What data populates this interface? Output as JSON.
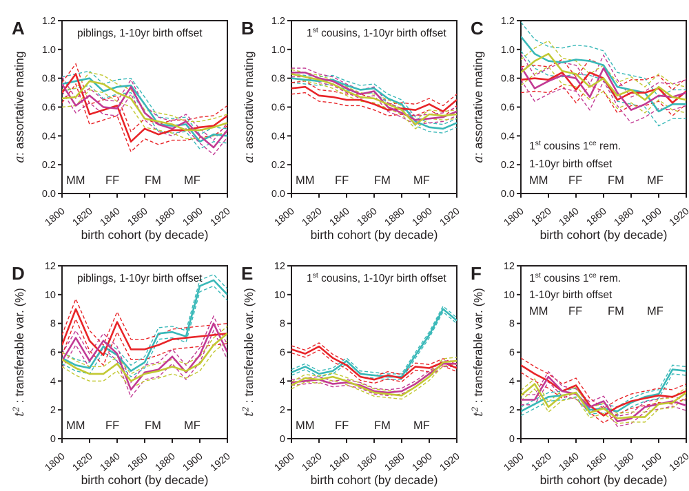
{
  "figure": {
    "background": "#ffffff",
    "axis_color": "#231f20",
    "xlabel": "birth cohort (by decade)",
    "legend_labels": [
      "MM",
      "FF",
      "FM",
      "MF"
    ],
    "series_colors": {
      "MM": "#38b8b8",
      "FF": "#e82428",
      "FM": "#c23a94",
      "MF": "#c2c832"
    }
  },
  "chart_data": [
    {
      "id": "A",
      "type": "line",
      "ylabel_segments": [
        {
          "t": "a",
          "italic": true
        },
        {
          "t": ": assortative mating"
        }
      ],
      "ylim": [
        0,
        1.2
      ],
      "yticks": [
        0,
        0.2,
        0.4,
        0.6,
        0.8,
        1.0,
        1.2
      ],
      "ytick_decimals": 1,
      "xlabel": "birth cohort (by decade)",
      "xticks": [
        1800,
        1820,
        1840,
        1860,
        1880,
        1900,
        1920
      ],
      "x": [
        1800,
        1810,
        1820,
        1830,
        1840,
        1850,
        1860,
        1870,
        1880,
        1890,
        1900,
        1910,
        1920
      ],
      "annotation": {
        "placement": "top",
        "lines": [
          [
            {
              "t": "piblings, 1-10yr birth offset"
            }
          ]
        ]
      },
      "legend_placement": "bottom",
      "series": [
        {
          "name": "MM",
          "values": [
            0.76,
            0.78,
            0.8,
            0.71,
            0.74,
            0.75,
            0.62,
            0.48,
            0.47,
            0.48,
            0.36,
            0.41,
            0.4
          ],
          "ci": 0.05
        },
        {
          "name": "FF",
          "values": [
            0.7,
            0.83,
            0.55,
            0.58,
            0.61,
            0.36,
            0.45,
            0.41,
            0.44,
            0.44,
            0.46,
            0.47,
            0.54
          ],
          "ci": 0.07
        },
        {
          "name": "FM",
          "values": [
            0.76,
            0.61,
            0.68,
            0.6,
            0.59,
            0.74,
            0.56,
            0.48,
            0.45,
            0.5,
            0.4,
            0.32,
            0.44
          ],
          "ci": 0.05
        },
        {
          "name": "MF",
          "values": [
            0.66,
            0.67,
            0.78,
            0.76,
            0.7,
            0.66,
            0.52,
            0.5,
            0.48,
            0.44,
            0.44,
            0.46,
            0.49
          ],
          "ci": 0.06
        }
      ]
    },
    {
      "id": "B",
      "type": "line",
      "ylabel_segments": [
        {
          "t": "a",
          "italic": true
        },
        {
          "t": ": assortative mating"
        }
      ],
      "ylim": [
        0,
        1.2
      ],
      "yticks": [
        0,
        0.2,
        0.4,
        0.6,
        0.8,
        1.0,
        1.2
      ],
      "ytick_decimals": 1,
      "xlabel": "birth cohort (by decade)",
      "xticks": [
        1800,
        1820,
        1840,
        1860,
        1880,
        1900,
        1920
      ],
      "x": [
        1800,
        1810,
        1820,
        1830,
        1840,
        1850,
        1860,
        1870,
        1880,
        1890,
        1900,
        1910,
        1920
      ],
      "annotation": {
        "placement": "top",
        "lines": [
          [
            {
              "t": "1"
            },
            {
              "t": "st",
              "sup": true
            },
            {
              "t": " cousins, 1-10yr birth offset"
            }
          ]
        ]
      },
      "legend_placement": "bottom",
      "series": [
        {
          "name": "MM",
          "values": [
            0.8,
            0.79,
            0.78,
            0.79,
            0.75,
            0.72,
            0.73,
            0.66,
            0.62,
            0.5,
            0.46,
            0.45,
            0.49
          ],
          "ci": 0.03
        },
        {
          "name": "FF",
          "values": [
            0.73,
            0.74,
            0.68,
            0.67,
            0.65,
            0.65,
            0.62,
            0.58,
            0.59,
            0.58,
            0.62,
            0.57,
            0.65
          ],
          "ci": 0.04
        },
        {
          "name": "FM",
          "values": [
            0.84,
            0.84,
            0.8,
            0.78,
            0.73,
            0.69,
            0.71,
            0.6,
            0.56,
            0.51,
            0.52,
            0.53,
            0.57
          ],
          "ci": 0.03
        },
        {
          "name": "MF",
          "values": [
            0.83,
            0.81,
            0.79,
            0.76,
            0.71,
            0.67,
            0.66,
            0.62,
            0.58,
            0.48,
            0.55,
            0.54,
            0.55
          ],
          "ci": 0.03
        }
      ]
    },
    {
      "id": "C",
      "type": "line",
      "ylabel_segments": [
        {
          "t": "a",
          "italic": true
        },
        {
          "t": ": assortative mating"
        }
      ],
      "ylim": [
        0,
        1.2
      ],
      "yticks": [
        0,
        0.2,
        0.4,
        0.6,
        0.8,
        1.0,
        1.2
      ],
      "ytick_decimals": 1,
      "xlabel": "birth cohort (by decade)",
      "xticks": [
        1800,
        1820,
        1840,
        1860,
        1880,
        1900,
        1920
      ],
      "x": [
        1800,
        1810,
        1820,
        1830,
        1840,
        1850,
        1860,
        1870,
        1880,
        1890,
        1900,
        1910,
        1920
      ],
      "annotation": {
        "placement": "bottom",
        "lines": [
          [
            {
              "t": "1"
            },
            {
              "t": "st",
              "sup": true
            },
            {
              "t": " cousins 1"
            },
            {
              "t": "ce",
              "sup": true
            },
            {
              "t": " rem."
            }
          ],
          [
            {
              "t": "1-10yr birth offset"
            }
          ]
        ]
      },
      "legend_placement": "bottom",
      "series": [
        {
          "name": "MM",
          "values": [
            1.09,
            0.97,
            0.92,
            0.91,
            0.93,
            0.92,
            0.89,
            0.74,
            0.72,
            0.7,
            0.57,
            0.62,
            0.62
          ],
          "ci": 0.1
        },
        {
          "name": "FF",
          "values": [
            0.79,
            0.8,
            0.79,
            0.84,
            0.72,
            0.84,
            0.8,
            0.65,
            0.7,
            0.7,
            0.73,
            0.63,
            0.71
          ],
          "ci": 0.09
        },
        {
          "name": "FM",
          "values": [
            0.88,
            0.73,
            0.78,
            0.82,
            0.8,
            0.67,
            0.87,
            0.7,
            0.58,
            0.62,
            0.68,
            0.67,
            0.7
          ],
          "ci": 0.09
        },
        {
          "name": "MF",
          "values": [
            0.84,
            0.92,
            0.97,
            0.85,
            0.83,
            0.74,
            0.8,
            0.68,
            0.72,
            0.65,
            0.74,
            0.67,
            0.65
          ],
          "ci": 0.09
        }
      ]
    },
    {
      "id": "D",
      "type": "line",
      "ylabel_segments": [
        {
          "t": "t",
          "italic": true
        },
        {
          "t": "2",
          "sup": true,
          "italic": true
        },
        {
          "t": " : transferable var. (%)"
        }
      ],
      "ylim": [
        0,
        12
      ],
      "yticks": [
        0,
        2,
        4,
        6,
        8,
        10,
        12
      ],
      "ytick_decimals": 0,
      "xlabel": "birth cohort (by decade)",
      "xticks": [
        1800,
        1820,
        1840,
        1860,
        1880,
        1900,
        1920
      ],
      "x": [
        1800,
        1810,
        1820,
        1830,
        1840,
        1850,
        1860,
        1870,
        1880,
        1890,
        1900,
        1910,
        1920
      ],
      "annotation": {
        "placement": "top",
        "lines": [
          [
            {
              "t": "piblings, 1-10yr birth offset"
            }
          ]
        ]
      },
      "legend_placement": "bottom",
      "series": [
        {
          "name": "MM",
          "values": [
            5.6,
            5.1,
            4.9,
            6.4,
            5.8,
            4.7,
            5.3,
            7.3,
            7.4,
            7.1,
            10.6,
            11.0,
            10.0
          ],
          "ci": 0.4
        },
        {
          "name": "FF",
          "values": [
            6.5,
            9.0,
            6.8,
            5.8,
            8.1,
            6.2,
            6.2,
            6.5,
            6.9,
            7.0,
            7.1,
            7.2,
            7.3
          ],
          "ci": 0.7
        },
        {
          "name": "FM",
          "values": [
            5.4,
            7.0,
            5.4,
            6.8,
            5.9,
            3.4,
            4.6,
            4.8,
            5.7,
            4.6,
            5.8,
            8.0,
            6.0
          ],
          "ci": 0.5
        },
        {
          "name": "MF",
          "values": [
            5.5,
            4.9,
            4.5,
            4.5,
            5.2,
            4.0,
            4.5,
            4.7,
            5.0,
            4.7,
            5.2,
            6.5,
            7.3
          ],
          "ci": 0.5
        }
      ]
    },
    {
      "id": "E",
      "type": "line",
      "ylabel_segments": [
        {
          "t": "t",
          "italic": true
        },
        {
          "t": "2",
          "sup": true,
          "italic": true
        },
        {
          "t": " : transferable var. (%)"
        }
      ],
      "ylim": [
        0,
        12
      ],
      "yticks": [
        0,
        2,
        4,
        6,
        8,
        10,
        12
      ],
      "ytick_decimals": 0,
      "xlabel": "birth cohort (by decade)",
      "xticks": [
        1800,
        1820,
        1840,
        1860,
        1880,
        1900,
        1920
      ],
      "x": [
        1800,
        1810,
        1820,
        1830,
        1840,
        1850,
        1860,
        1870,
        1880,
        1890,
        1900,
        1910,
        1920
      ],
      "annotation": {
        "placement": "top",
        "lines": [
          [
            {
              "t": "1"
            },
            {
              "t": "st",
              "sup": true
            },
            {
              "t": " cousins, 1-10yr birth offset"
            }
          ]
        ]
      },
      "legend_placement": "bottom",
      "series": [
        {
          "name": "MM",
          "values": [
            4.6,
            5.0,
            4.5,
            4.7,
            5.4,
            4.5,
            4.4,
            4.3,
            4.3,
            5.8,
            7.2,
            9.0,
            8.2
          ],
          "ci": 0.2
        },
        {
          "name": "FF",
          "values": [
            6.2,
            5.9,
            6.4,
            5.6,
            5.1,
            4.3,
            4.1,
            4.4,
            4.2,
            5.0,
            4.9,
            5.3,
            4.9
          ],
          "ci": 0.25
        },
        {
          "name": "FM",
          "values": [
            3.9,
            4.0,
            4.1,
            3.8,
            3.9,
            3.7,
            3.3,
            3.2,
            3.3,
            3.8,
            4.5,
            5.2,
            5.2
          ],
          "ci": 0.2
        },
        {
          "name": "MF",
          "values": [
            3.7,
            4.2,
            4.1,
            4.3,
            4.0,
            3.6,
            3.2,
            3.1,
            3.0,
            3.6,
            4.3,
            5.3,
            5.4
          ],
          "ci": 0.25
        }
      ]
    },
    {
      "id": "F",
      "type": "line",
      "ylabel_segments": [
        {
          "t": "t",
          "italic": true
        },
        {
          "t": "2",
          "sup": true,
          "italic": true
        },
        {
          "t": " : transferable var. (%)"
        }
      ],
      "ylim": [
        0,
        12
      ],
      "yticks": [
        0,
        2,
        4,
        6,
        8,
        10,
        12
      ],
      "ytick_decimals": 0,
      "xlabel": "birth cohort (by decade)",
      "xticks": [
        1800,
        1820,
        1840,
        1860,
        1880,
        1900,
        1920
      ],
      "x": [
        1800,
        1810,
        1820,
        1830,
        1840,
        1850,
        1860,
        1870,
        1880,
        1890,
        1900,
        1910,
        1920
      ],
      "annotation": {
        "placement": "top",
        "lines": [
          [
            {
              "t": "1"
            },
            {
              "t": "st",
              "sup": true
            },
            {
              "t": " cousins 1"
            },
            {
              "t": "ce",
              "sup": true
            },
            {
              "t": " rem."
            }
          ],
          [
            {
              "t": "1-10yr birth offset"
            }
          ]
        ]
      },
      "legend_placement": "in_annotation",
      "series": [
        {
          "name": "MM",
          "values": [
            1.9,
            2.4,
            2.9,
            3.0,
            3.2,
            2.0,
            2.1,
            1.9,
            2.5,
            2.9,
            3.1,
            4.8,
            4.7
          ],
          "ci": 0.3
        },
        {
          "name": "FF",
          "values": [
            5.1,
            4.5,
            4.0,
            3.3,
            3.7,
            2.3,
            1.6,
            2.2,
            2.6,
            2.8,
            3.0,
            2.9,
            3.3
          ],
          "ci": 0.5
        },
        {
          "name": "FM",
          "values": [
            2.7,
            2.7,
            4.3,
            3.3,
            3.1,
            2.2,
            2.6,
            1.2,
            1.4,
            2.2,
            2.4,
            2.6,
            2.3
          ],
          "ci": 0.35
        },
        {
          "name": "MF",
          "values": [
            3.0,
            3.8,
            2.2,
            3.0,
            3.2,
            1.8,
            2.1,
            1.4,
            1.5,
            1.5,
            2.4,
            2.5,
            3.2
          ],
          "ci": 0.35
        }
      ]
    }
  ]
}
